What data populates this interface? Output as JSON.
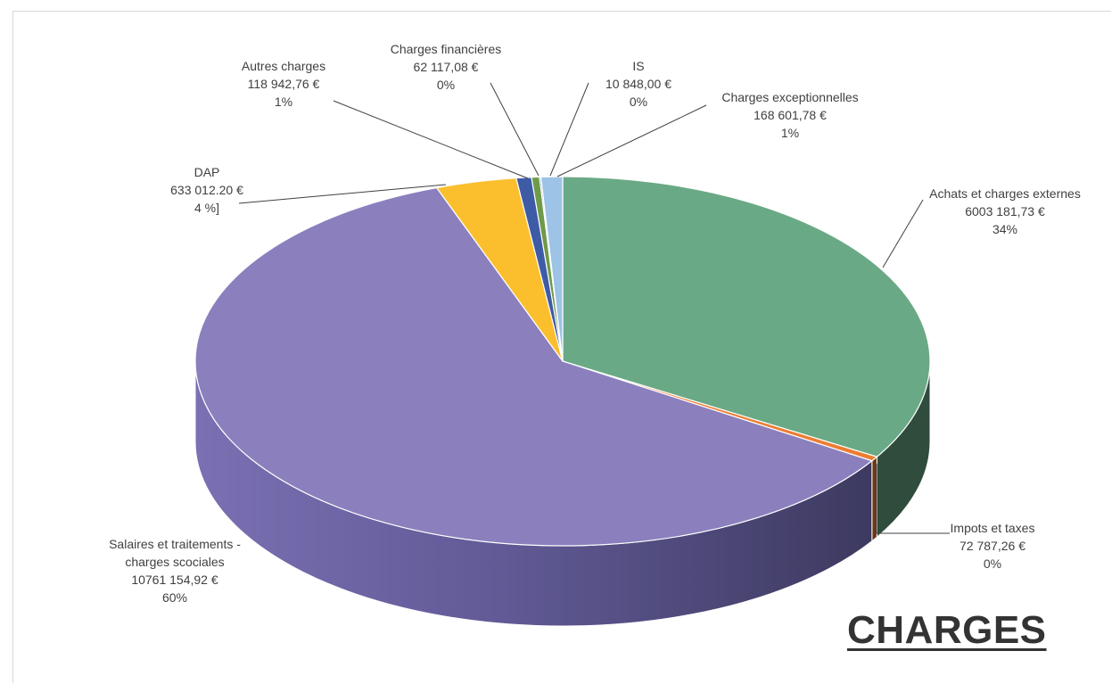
{
  "chart_data": {
    "type": "pie",
    "title": "CHARGES",
    "slices": [
      {
        "name": "Achats et charges externes",
        "value_text": "6003 181,73 €",
        "pct_text": "34%",
        "value": 6003181.73,
        "color": "#6aa985"
      },
      {
        "name": "Impots et taxes",
        "value_text": "72 787,26 €",
        "pct_text": "0%",
        "value": 72787.26,
        "color": "#ed7d31"
      },
      {
        "name": "Salaires et traitements - charges scociales",
        "name_lines": [
          "Salaires et traitements -",
          "charges scociales"
        ],
        "value_text": "10761 154,92 €",
        "pct_text": "60%",
        "value": 10761154.92,
        "color": "#8b80bd"
      },
      {
        "name": "DAP",
        "value_text": "633 012.20 €",
        "pct_text": "4 %]",
        "value": 633012.2,
        "color": "#fbbf2d"
      },
      {
        "name": "Autres charges",
        "value_text": "118 942,76 €",
        "pct_text": "1%",
        "value": 118942.76,
        "color": "#3e5ba6"
      },
      {
        "name": "Charges financières",
        "value_text": "62 117,08 €",
        "pct_text": "0%",
        "value": 62117.08,
        "color": "#6e9a4a"
      },
      {
        "name": "IS",
        "value_text": "10 848,00 €",
        "pct_text": "0%",
        "value": 10848.0,
        "color": "#2e7bbd"
      },
      {
        "name": "Charges exceptionnelles",
        "value_text": "168 601,78 €",
        "pct_text": "1%",
        "value": 168601.78,
        "color": "#9dc3e6"
      }
    ]
  }
}
